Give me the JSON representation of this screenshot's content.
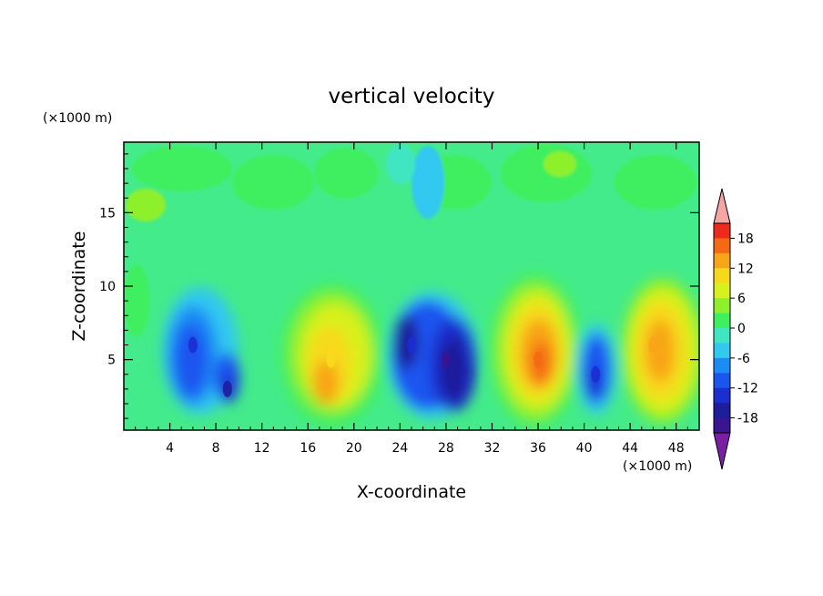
{
  "chart_data": {
    "type": "heatmap",
    "title": "vertical velocity",
    "xlabel": "X-coordinate",
    "ylabel": "Z-coordinate",
    "x_units": "(×1000 m)",
    "y_units": "(×1000 m)",
    "xlim": [
      0,
      50
    ],
    "ylim": [
      0.2,
      19.8
    ],
    "x_ticks": [
      4,
      8,
      12,
      16,
      20,
      24,
      28,
      32,
      36,
      40,
      44,
      48
    ],
    "y_ticks": [
      5,
      10,
      15
    ],
    "colorbar": {
      "levels": [
        -21,
        -18,
        -15,
        -12,
        -9,
        -6,
        -3,
        0,
        3,
        6,
        9,
        12,
        15,
        18,
        21
      ],
      "tick_labels": [
        18,
        12,
        6,
        0,
        -6,
        -12,
        -18
      ],
      "colors": [
        "#7a1fa2",
        "#3a1590",
        "#1e1e9c",
        "#1c2ed0",
        "#1a55f0",
        "#1c8cf5",
        "#33c8ef",
        "#3fe6c2",
        "#3fef5f",
        "#8ef02a",
        "#d9f01f",
        "#f7d91c",
        "#f8a418",
        "#f46a14",
        "#ee2a1f",
        "#f5a5a5"
      ]
    },
    "cells": [
      {
        "x": 6,
        "z": 6,
        "w": -14
      },
      {
        "x": 9,
        "z": 3,
        "w": -16
      },
      {
        "x": 18,
        "z": 5,
        "w": 11
      },
      {
        "x": 25,
        "z": 6,
        "w": -15
      },
      {
        "x": 28,
        "z": 5,
        "w": -19
      },
      {
        "x": 36,
        "z": 5,
        "w": 17
      },
      {
        "x": 41,
        "z": 4,
        "w": -14
      },
      {
        "x": 46,
        "z": 6,
        "w": 14
      }
    ]
  }
}
